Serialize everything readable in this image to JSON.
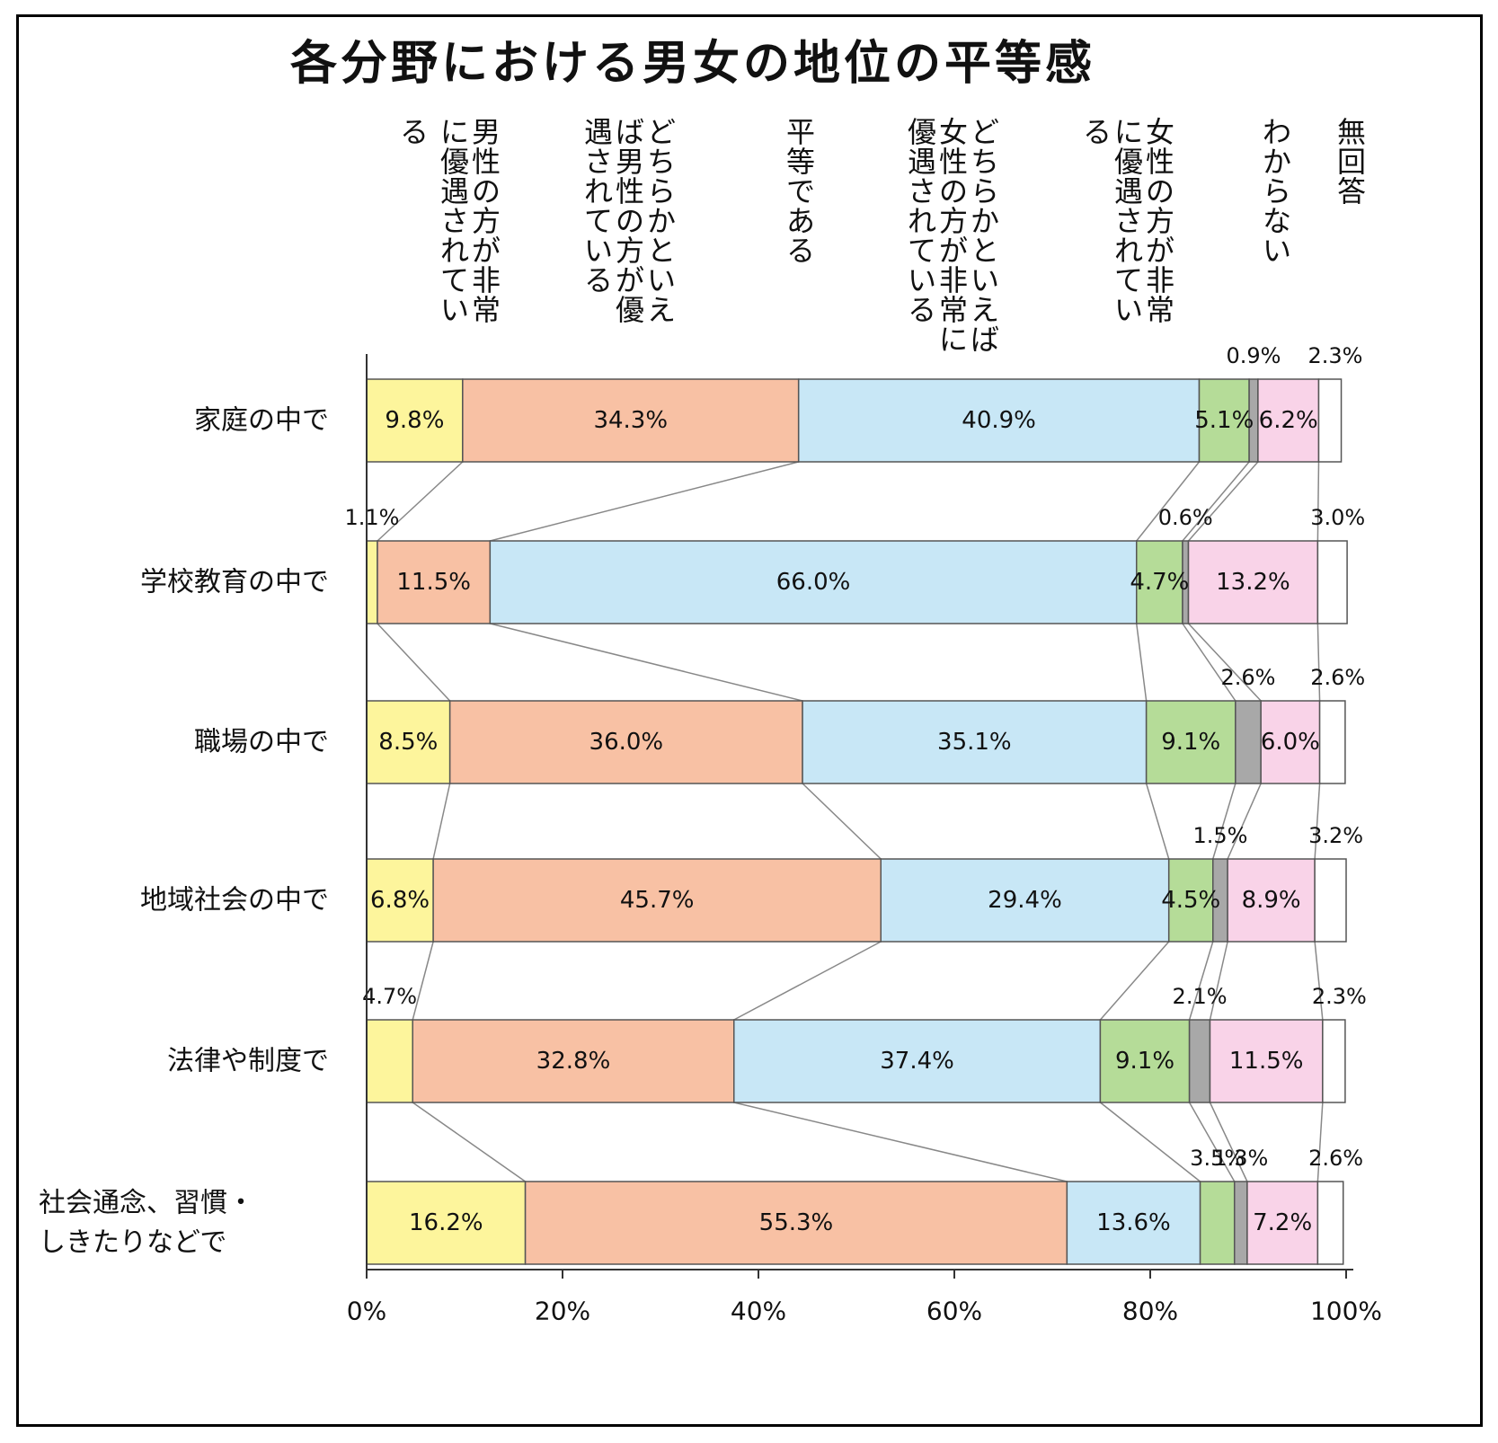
{
  "chart_data": {
    "type": "stacked-bar-100",
    "title": "各分野における男女の地位の平等感",
    "categories": [
      [
        "家庭の中で"
      ],
      [
        "学校教育の中で"
      ],
      [
        "職場の中で"
      ],
      [
        "地域社会の中で"
      ],
      [
        "法律や制度で"
      ],
      [
        "社会通念、習慣・",
        "しきたりなどで"
      ]
    ],
    "series": [
      {
        "name": [
          "男性の方が非常",
          "に優遇されてい",
          "る"
        ],
        "color": "#fdf59c",
        "values": [
          9.8,
          1.1,
          8.5,
          6.8,
          4.7,
          16.2
        ],
        "labels": [
          "9.8%",
          "1.1%",
          "8.5%",
          "6.8%",
          "4.7%",
          "16.2%"
        ]
      },
      {
        "name": [
          "どちらかといえ",
          "ば男性の方が優",
          "遇されている"
        ],
        "color": "#f8c1a4",
        "values": [
          34.3,
          11.5,
          36.0,
          45.7,
          32.8,
          55.3
        ],
        "labels": [
          "34.3%",
          "11.5%",
          "36.0%",
          "45.7%",
          "32.8%",
          "55.3%"
        ]
      },
      {
        "name": [
          "平等である"
        ],
        "color": "#c8e7f6",
        "values": [
          40.9,
          66.0,
          35.1,
          29.4,
          37.4,
          13.6
        ],
        "labels": [
          "40.9%",
          "66.0%",
          "35.1%",
          "29.4%",
          "37.4%",
          "13.6%"
        ]
      },
      {
        "name": [
          "どちらかといえば",
          "女性の方が非常に",
          "優遇されている"
        ],
        "color": "#b5dc98",
        "values": [
          5.1,
          4.7,
          9.1,
          4.5,
          9.1,
          3.5
        ],
        "labels": [
          "5.1%",
          "4.7%",
          "9.1%",
          "4.5%",
          "9.1%",
          "3.5%"
        ]
      },
      {
        "name": [
          "女性の方が非常",
          "に優遇されてい",
          "る"
        ],
        "color": "#a8a8a8",
        "values": [
          0.9,
          0.6,
          2.6,
          1.5,
          2.1,
          1.3
        ],
        "labels": [
          "0.9%",
          "0.6%",
          "2.6%",
          "1.5%",
          "2.1%",
          "1.3%"
        ]
      },
      {
        "name": [
          "わからない"
        ],
        "color": "#f9d3e8",
        "values": [
          6.2,
          13.2,
          6.0,
          8.9,
          11.5,
          7.2
        ],
        "labels": [
          "6.2%",
          "13.2%",
          "6.0%",
          "8.9%",
          "11.5%",
          "7.2%"
        ]
      },
      {
        "name": [
          "無回答"
        ],
        "color": "#ffffff",
        "values": [
          2.3,
          3.0,
          2.6,
          3.2,
          2.3,
          2.6
        ],
        "labels": [
          "2.3%",
          "3.0%",
          "2.6%",
          "3.2%",
          "2.3%",
          "2.6%"
        ]
      }
    ],
    "outside_labels": [
      {
        "row": 0,
        "series": 4
      },
      {
        "row": 0,
        "series": 6
      },
      {
        "row": 1,
        "series": 0
      },
      {
        "row": 1,
        "series": 4
      },
      {
        "row": 1,
        "series": 6
      },
      {
        "row": 2,
        "series": 4
      },
      {
        "row": 2,
        "series": 6
      },
      {
        "row": 3,
        "series": 4
      },
      {
        "row": 3,
        "series": 6
      },
      {
        "row": 4,
        "series": 0
      },
      {
        "row": 4,
        "series": 4
      },
      {
        "row": 4,
        "series": 6
      },
      {
        "row": 5,
        "series": 3
      },
      {
        "row": 5,
        "series": 4
      },
      {
        "row": 5,
        "series": 6
      }
    ],
    "xticks": [
      "0%",
      "20%",
      "40%",
      "60%",
      "80%",
      "100%"
    ],
    "xlim": [
      0,
      100
    ],
    "connector_lines": true,
    "legend": "top (vertical labels above each segment)",
    "grid": false
  }
}
